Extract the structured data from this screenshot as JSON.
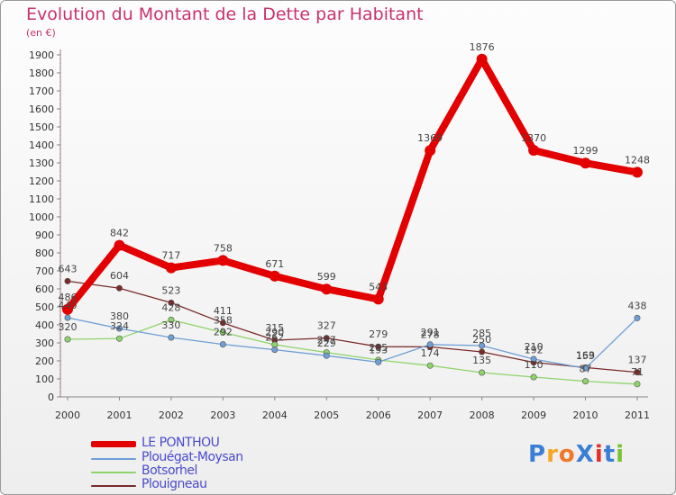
{
  "title": "Evolution du Montant de la Dette par Habitant",
  "subtitle": "(en €)",
  "logo": {
    "text": "ProXiti",
    "colors": [
      "#3a7fd5",
      "#f5a623",
      "#f07828",
      "#3a7fd5",
      "#e5302a",
      "#3a7fd5",
      "#7cc230"
    ]
  },
  "chart_data": {
    "type": "line",
    "x": [
      "2000",
      "2001",
      "2002",
      "2003",
      "2004",
      "2005",
      "2006",
      "2007",
      "2008",
      "2009",
      "2010",
      "2011"
    ],
    "ylim": [
      0,
      1900
    ],
    "yticks": [
      0,
      100,
      200,
      300,
      400,
      500,
      600,
      700,
      800,
      900,
      1000,
      1100,
      1200,
      1300,
      1400,
      1500,
      1600,
      1700,
      1800,
      1900
    ],
    "grid": false,
    "legend_position": "bottom-left",
    "series": [
      {
        "name": "LE PONTHOU",
        "color": "#e30000",
        "width": 8,
        "values": [
          486,
          842,
          717,
          758,
          671,
          599,
          543,
          1369,
          1876,
          1370,
          1299,
          1248
        ],
        "labels": [
          "486",
          "842",
          "717",
          "758",
          "671",
          "599",
          "543",
          "1369",
          "1876",
          "1370",
          "1299",
          "1248"
        ]
      },
      {
        "name": "Plouégat-Moysan",
        "color": "#6e9fd6",
        "width": 1.3,
        "values": [
          440,
          380,
          330,
          292,
          262,
          229,
          193,
          291,
          285,
          210,
          159,
          438
        ],
        "labels": [
          "440",
          "380",
          "330",
          "292",
          "262",
          "229",
          "193",
          "291",
          "285",
          "210",
          "159",
          "438"
        ]
      },
      {
        "name": "Botsorhel",
        "color": "#8ed46a",
        "width": 1.3,
        "values": [
          320,
          324,
          428,
          358,
          290,
          247,
          205,
          174,
          135,
          110,
          87,
          71
        ],
        "labels": [
          "320",
          "324",
          "428",
          "358",
          "290",
          "247",
          "205",
          "174",
          "135",
          "110",
          "87",
          "71"
        ]
      },
      {
        "name": "Plouigneau",
        "color": "#7a2a2a",
        "width": 1.3,
        "values": [
          643,
          604,
          523,
          411,
          315,
          327,
          279,
          278,
          250,
          192,
          163,
          137
        ],
        "labels": [
          "643",
          "604",
          "523",
          "411",
          "315",
          "327",
          "279",
          "278",
          "250",
          "192",
          "163",
          "137"
        ]
      }
    ]
  }
}
